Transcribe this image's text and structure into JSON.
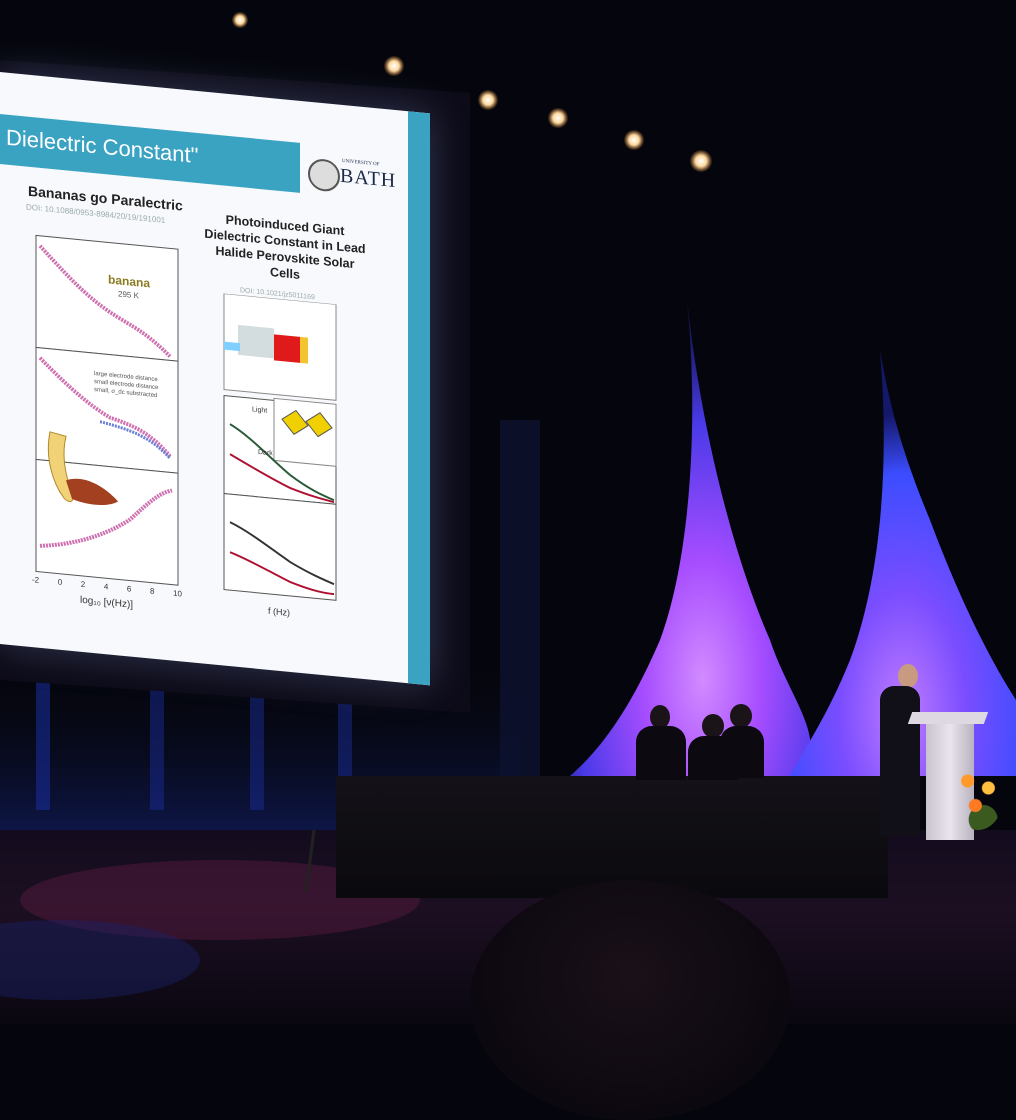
{
  "slide": {
    "title": "Dielectric Constant\"",
    "logo": {
      "small": "UNIVERSITY OF",
      "big": "BATH"
    },
    "left_panel": {
      "heading": "Bananas go Paralectric",
      "doi": "DOI: 10.1088/0953-8984/20/19/191001",
      "sample_label": "banana",
      "temperature": "295 K",
      "legend": [
        "large electrode distance",
        "small electrode distance",
        "small, σ_dc substracted"
      ],
      "x_label": "log₁₀ [ν(Hz)]",
      "x_ticks": [
        "-2",
        "0",
        "2",
        "4",
        "6",
        "8",
        "10"
      ]
    },
    "right_panel": {
      "heading": "Photoinduced Giant Dielectric Constant in Lead Halide Perovskite Solar Cells",
      "doi": "DOI: 10.1021/jz5011169",
      "curve_labels": [
        "Light",
        "Dark"
      ],
      "x_label": "f (Hz)"
    }
  },
  "colors": {
    "slide_accent": "#3aa3c2",
    "stage_purple": "#a64dff",
    "stage_blue": "#3b4dff"
  }
}
